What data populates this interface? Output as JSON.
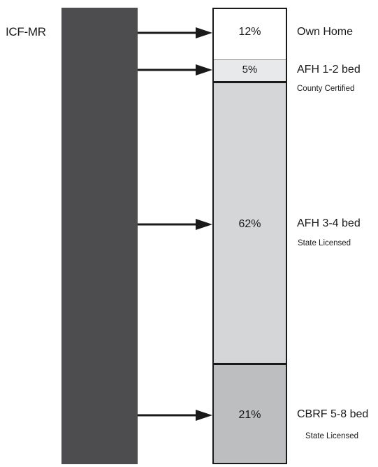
{
  "source": {
    "label": "ICF-MR"
  },
  "segments": [
    {
      "percent": 12,
      "percent_label": "12%",
      "label": "Own Home",
      "sublabel": ""
    },
    {
      "percent": 5,
      "percent_label": "5%",
      "label": "AFH 1-2 bed",
      "sublabel": "County Certified"
    },
    {
      "percent": 62,
      "percent_label": "62%",
      "label": "AFH 3-4 bed",
      "sublabel": "State Licensed"
    },
    {
      "percent": 21,
      "percent_label": "21%",
      "label": "CBRF 5-8 bed",
      "sublabel": "State Licensed"
    }
  ],
  "colors": {
    "source_bar": "#4d4d4f",
    "own_home": "#ffffff",
    "afh_1_2": "#e8e9ea",
    "afh_3_4": "#d5d6d8",
    "cbrf": "#bdbec0",
    "outline": "#1a1a1a"
  }
}
